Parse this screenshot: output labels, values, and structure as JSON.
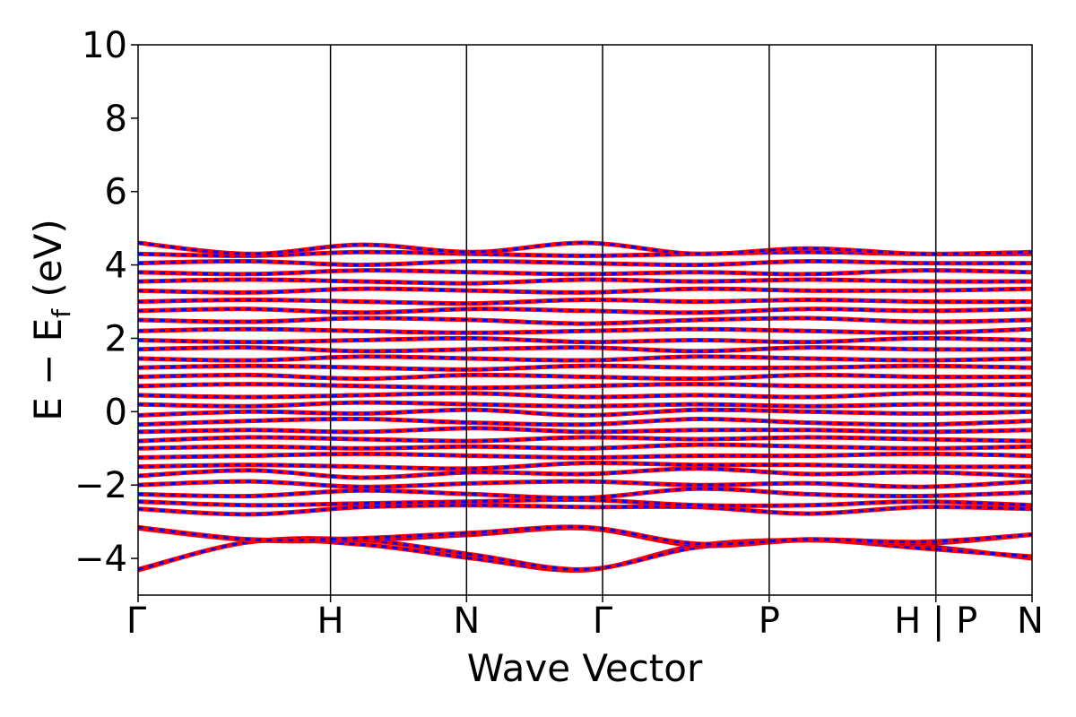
{
  "chart_data": {
    "type": "line",
    "title": "",
    "xlabel": "Wave Vector",
    "ylabel": {
      "main": "E − E",
      "sub": "f",
      "unit": " (eV)"
    },
    "ylim": [
      -5,
      10
    ],
    "yticks": [
      -4,
      -2,
      0,
      2,
      4,
      6,
      8,
      10
    ],
    "ytick_labels": [
      "−4",
      "−2",
      "0",
      "2",
      "4",
      "6",
      "8",
      "10"
    ],
    "kpoints": [
      {
        "label": "Γ",
        "x": 0.0
      },
      {
        "label": "H",
        "x": 1.0
      },
      {
        "label": "N",
        "x": 1.707
      },
      {
        "label": "Γ",
        "x": 2.414
      },
      {
        "label": "P",
        "x": 3.28
      },
      {
        "label": "H | P",
        "x": 4.146
      },
      {
        "label": "N",
        "x": 4.646
      }
    ],
    "xlim": [
      0.0,
      4.646
    ],
    "grid": false,
    "series": [
      {
        "color": "#ff0000",
        "style": "solid"
      },
      {
        "color": "#0000ff",
        "style": "dashed"
      }
    ],
    "bands": [
      [
        -4.32,
        -3.55,
        -3.62,
        -4.0,
        -4.32,
        -3.65,
        -3.5,
        -3.65,
        -4.0
      ],
      [
        -4.3,
        -3.55,
        -3.5,
        -3.9,
        -4.3,
        -3.7,
        -3.5,
        -3.72,
        -3.95
      ],
      [
        -3.18,
        -3.5,
        -3.5,
        -3.35,
        -3.18,
        -3.65,
        -3.5,
        -3.6,
        -3.35
      ],
      [
        -3.15,
        -3.48,
        -3.45,
        -3.3,
        -3.15,
        -3.6,
        -3.48,
        -3.55,
        -3.35
      ],
      [
        -2.65,
        -2.8,
        -2.6,
        -2.55,
        -2.6,
        -2.6,
        -2.78,
        -2.6,
        -2.65
      ],
      [
        -2.45,
        -2.55,
        -2.5,
        -2.45,
        -2.4,
        -2.55,
        -2.55,
        -2.45,
        -2.55
      ],
      [
        -2.25,
        -2.3,
        -2.15,
        -2.25,
        -2.35,
        -2.1,
        -2.25,
        -2.3,
        -2.2
      ],
      [
        -2.0,
        -1.9,
        -2.05,
        -1.95,
        -1.9,
        -2.0,
        -1.95,
        -2.05,
        -1.9
      ],
      [
        -1.75,
        -1.6,
        -1.8,
        -1.65,
        -1.7,
        -1.55,
        -1.7,
        -1.65,
        -1.75
      ],
      [
        -1.5,
        -1.45,
        -1.5,
        -1.55,
        -1.4,
        -1.45,
        -1.45,
        -1.5,
        -1.5
      ],
      [
        -1.25,
        -1.2,
        -1.15,
        -1.2,
        -1.25,
        -1.2,
        -1.2,
        -1.15,
        -1.2
      ],
      [
        -1.0,
        -0.95,
        -1.0,
        -0.95,
        -1.0,
        -0.9,
        -0.95,
        -1.0,
        -0.95
      ],
      [
        -0.8,
        -0.7,
        -0.75,
        -0.8,
        -0.7,
        -0.75,
        -0.7,
        -0.75,
        -0.8
      ],
      [
        -0.55,
        -0.5,
        -0.55,
        -0.45,
        -0.55,
        -0.5,
        -0.5,
        -0.55,
        -0.5
      ],
      [
        -0.35,
        -0.25,
        -0.2,
        -0.3,
        -0.35,
        -0.2,
        -0.3,
        -0.35,
        -0.25
      ],
      [
        -0.1,
        0.0,
        -0.05,
        0.05,
        -0.1,
        0.05,
        0.0,
        -0.05,
        0.0
      ],
      [
        0.2,
        0.15,
        0.25,
        0.2,
        0.15,
        0.2,
        0.15,
        0.2,
        0.2
      ],
      [
        0.45,
        0.4,
        0.45,
        0.5,
        0.4,
        0.45,
        0.4,
        0.5,
        0.45
      ],
      [
        0.7,
        0.75,
        0.7,
        0.65,
        0.7,
        0.75,
        0.7,
        0.7,
        0.75
      ],
      [
        0.95,
        1.0,
        0.9,
        1.0,
        0.95,
        0.9,
        1.0,
        0.95,
        0.95
      ],
      [
        1.2,
        1.25,
        1.2,
        1.15,
        1.25,
        1.2,
        1.2,
        1.25,
        1.2
      ],
      [
        1.45,
        1.4,
        1.5,
        1.45,
        1.4,
        1.5,
        1.45,
        1.4,
        1.45
      ],
      [
        1.7,
        1.75,
        1.65,
        1.7,
        1.75,
        1.65,
        1.75,
        1.7,
        1.7
      ],
      [
        1.95,
        1.9,
        1.95,
        2.0,
        1.9,
        1.95,
        1.9,
        2.0,
        1.95
      ],
      [
        2.2,
        2.25,
        2.2,
        2.15,
        2.2,
        2.25,
        2.2,
        2.15,
        2.25
      ],
      [
        2.5,
        2.45,
        2.55,
        2.5,
        2.4,
        2.5,
        2.55,
        2.45,
        2.5
      ],
      [
        2.75,
        2.8,
        2.7,
        2.8,
        2.75,
        2.7,
        2.8,
        2.75,
        2.8
      ],
      [
        3.0,
        3.05,
        3.0,
        2.95,
        3.05,
        3.0,
        3.05,
        3.0,
        3.0
      ],
      [
        3.3,
        3.25,
        3.35,
        3.3,
        3.25,
        3.35,
        3.3,
        3.3,
        3.35
      ],
      [
        3.55,
        3.6,
        3.55,
        3.5,
        3.6,
        3.55,
        3.6,
        3.55,
        3.55
      ],
      [
        3.8,
        3.75,
        3.85,
        3.8,
        3.75,
        3.8,
        3.75,
        3.85,
        3.8
      ],
      [
        4.05,
        4.1,
        4.0,
        4.1,
        4.05,
        4.0,
        4.1,
        4.05,
        4.05
      ],
      [
        4.3,
        4.25,
        4.35,
        4.3,
        4.25,
        4.3,
        4.35,
        4.3,
        4.3
      ],
      [
        4.6,
        4.3,
        4.55,
        4.35,
        4.6,
        4.3,
        4.45,
        4.3,
        4.35
      ]
    ]
  }
}
